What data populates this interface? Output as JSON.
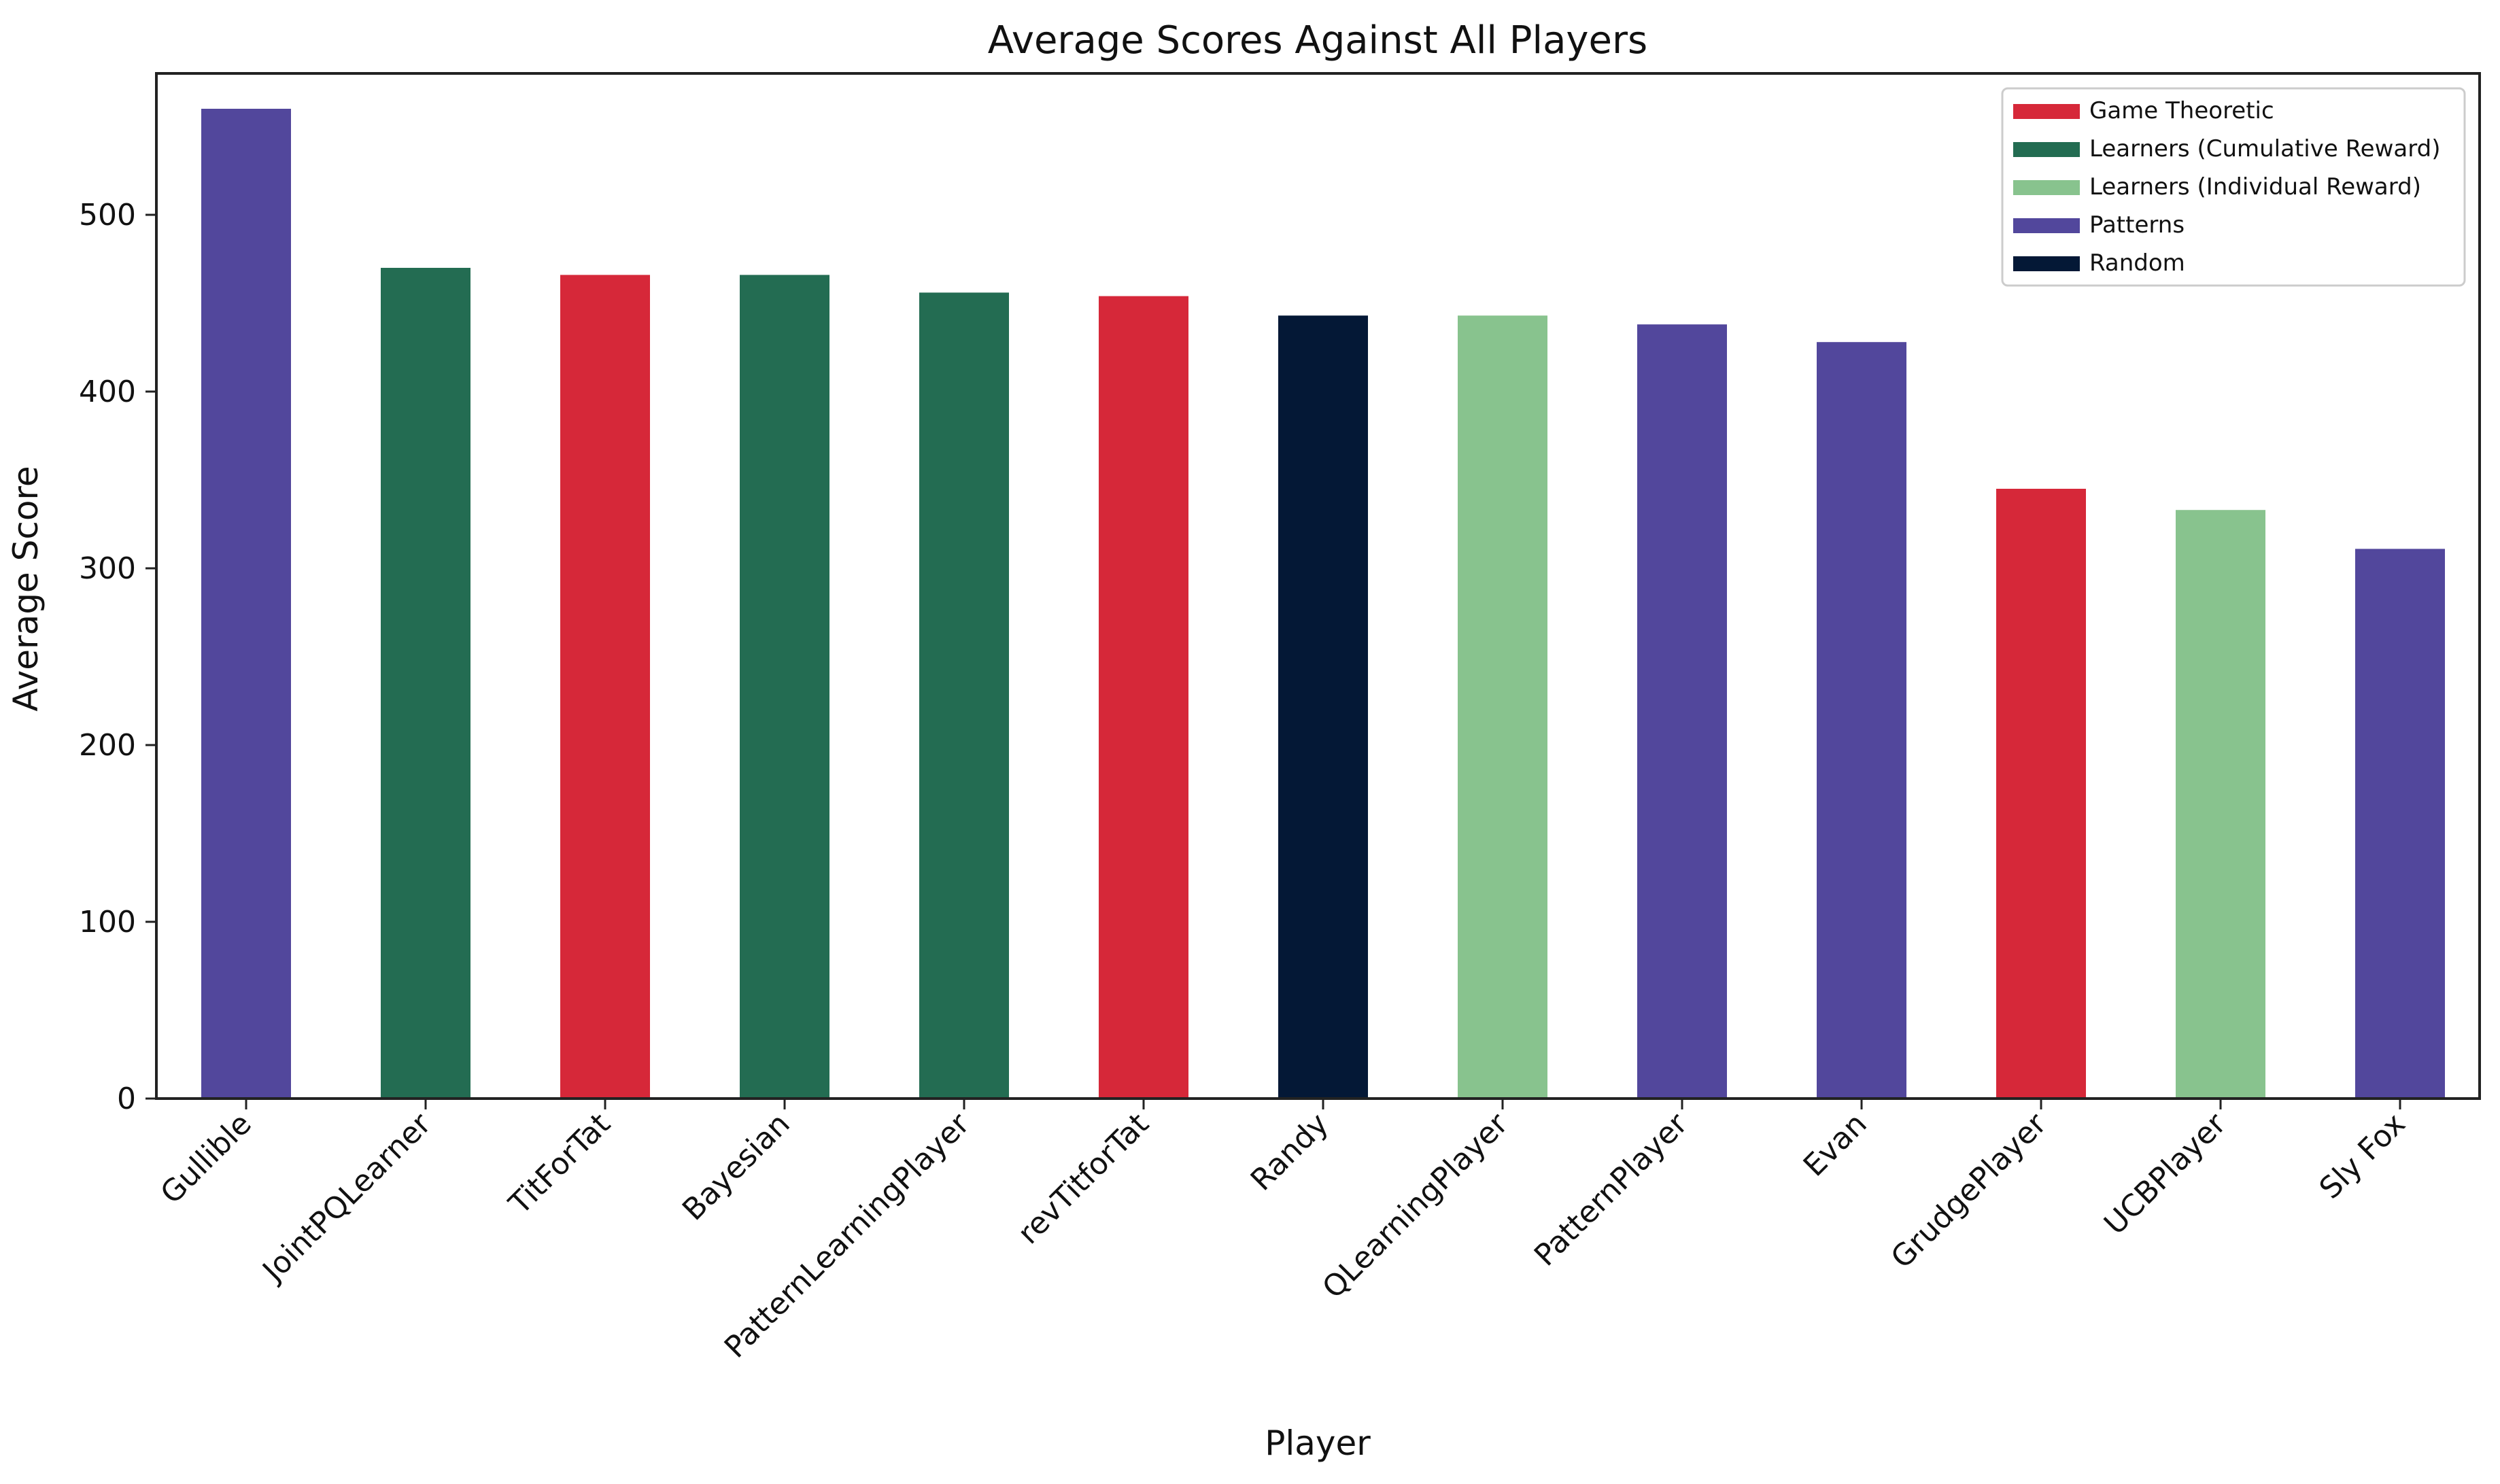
{
  "chart_data": {
    "type": "bar",
    "title": "Average Scores Against All Players",
    "xlabel": "Player",
    "ylabel": "Average Score",
    "ylim": [
      0,
      580
    ],
    "yticks": [
      0,
      100,
      200,
      300,
      400,
      500
    ],
    "grid": false,
    "legend_position": "top-right",
    "categories": [
      "Gullible",
      "JointPQLearner",
      "TitForTat",
      "Bayesian",
      "PatternLearningPlayer",
      "revTitforTat",
      "Randy",
      "QLearningPlayer",
      "PatternPlayer",
      "Evan",
      "GrudgePlayer",
      "UCBPlayer",
      "Sly Fox"
    ],
    "values": [
      560,
      470,
      466,
      466,
      456,
      454,
      443,
      443,
      438,
      428,
      345,
      333,
      311
    ],
    "groups": [
      "Patterns",
      "Learners (Cumulative Reward)",
      "Game Theoretic",
      "Learners (Cumulative Reward)",
      "Learners (Cumulative Reward)",
      "Game Theoretic",
      "Random",
      "Learners (Individual Reward)",
      "Patterns",
      "Patterns",
      "Game Theoretic",
      "Learners (Individual Reward)",
      "Patterns"
    ],
    "legend": [
      {
        "label": "Game Theoretic",
        "color": "#d62839"
      },
      {
        "label": "Learners (Cumulative Reward)",
        "color": "#236c52"
      },
      {
        "label": "Learners (Individual Reward)",
        "color": "#88c38e"
      },
      {
        "label": "Patterns",
        "color": "#52479c"
      },
      {
        "label": "Random",
        "color": "#041836"
      }
    ]
  }
}
